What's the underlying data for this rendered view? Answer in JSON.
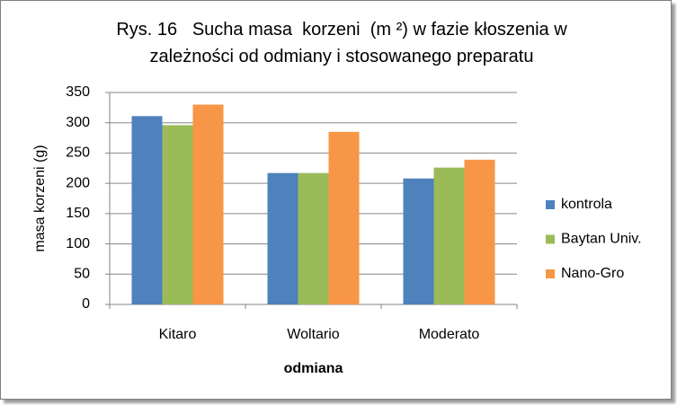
{
  "chart_data": {
    "type": "bar",
    "title": "Rys. 16   Sucha masa  korzeni  (m ²) w fazie kłoszenia w zależności od odmiany i stosowanego preparatu",
    "x_label": "odmiana",
    "y_label": "masa korzeni (g)",
    "categories": [
      "Kitaro",
      "Woltario",
      "Moderato"
    ],
    "series": [
      {
        "name": "kontrola",
        "color": "#4f81bd",
        "values": [
          311,
          217,
          208
        ]
      },
      {
        "name": "Baytan Univ.",
        "color": "#9bbb59",
        "values": [
          296,
          217,
          226
        ]
      },
      {
        "name": "Nano-Gro",
        "color": "#f79646",
        "values": [
          330,
          285,
          239
        ]
      }
    ],
    "ylim": [
      0,
      350
    ],
    "yticks": [
      0,
      50,
      100,
      150,
      200,
      250,
      300,
      350
    ],
    "grid": true,
    "legend": "right"
  }
}
